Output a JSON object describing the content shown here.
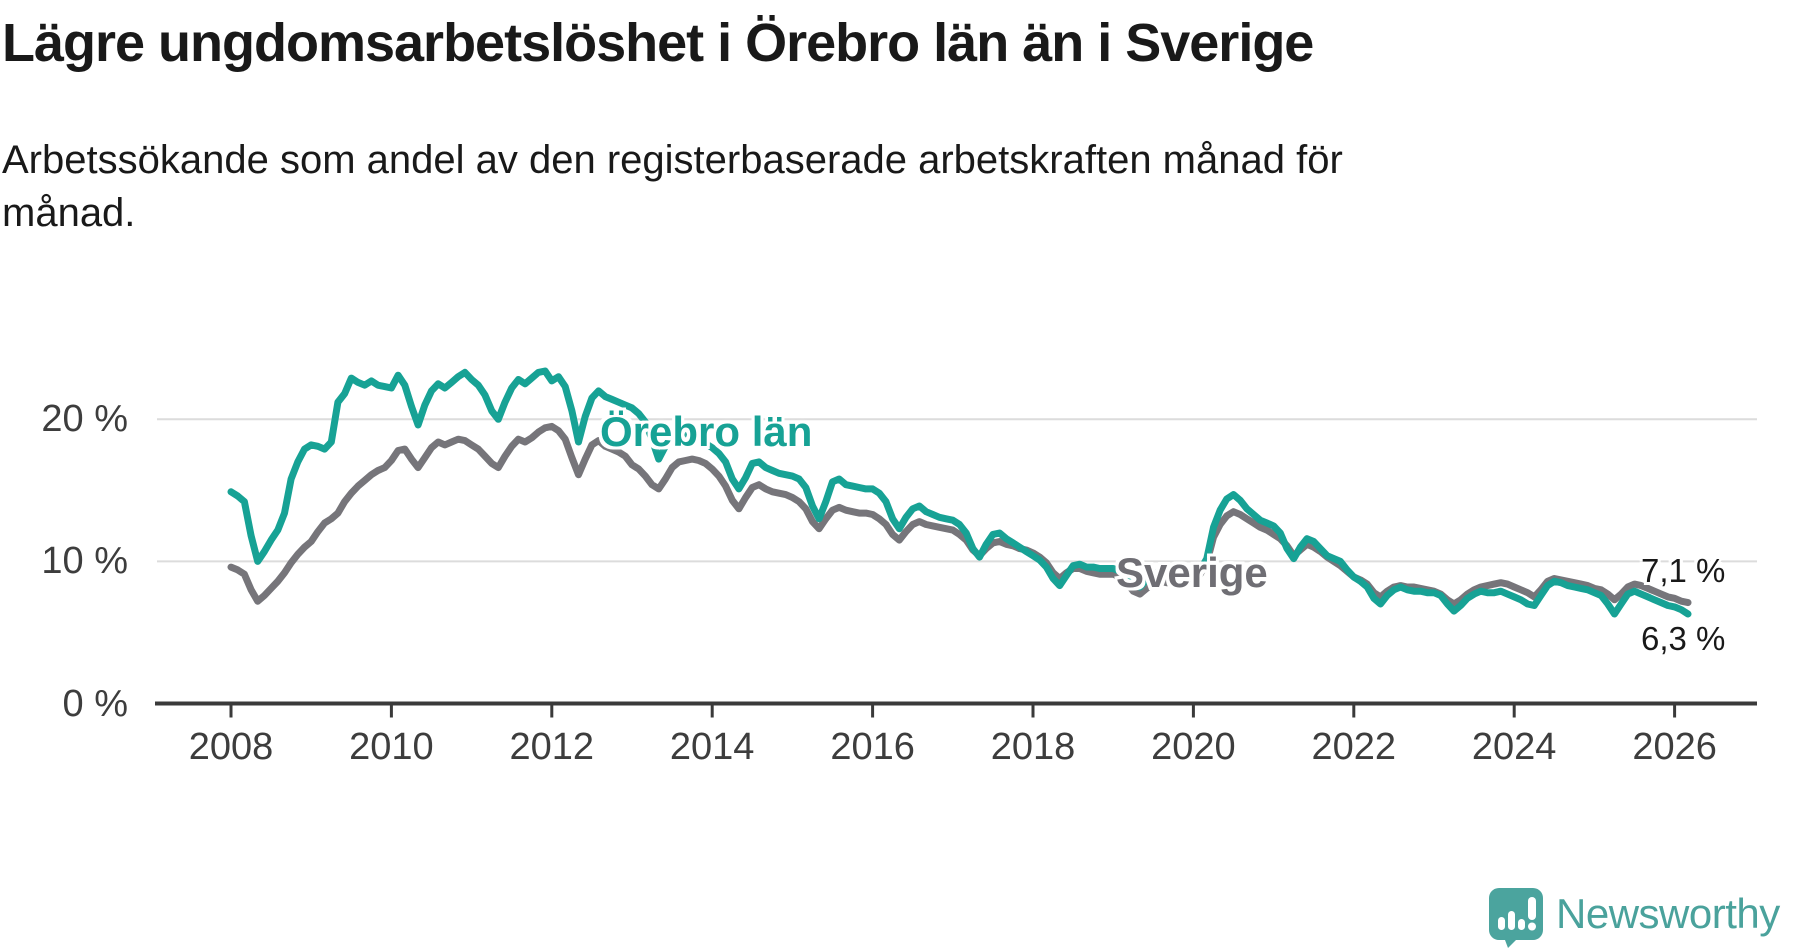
{
  "header": {
    "title": "Lägre ungdomsarbetslöshet i Örebro län än i Sverige"
  },
  "subtitle": {
    "lines": [
      "Arbetssökande som andel av den registerbaserade arbetskraften månad för",
      "månad."
    ]
  },
  "logo": {
    "text": "Newsworthy",
    "icon": "newsworthy-speech-bubble-chart-icon",
    "color": "#4aa29c",
    "icon_color": "#4ba49e"
  },
  "colors": {
    "orebro_line": "#17a295",
    "sverige_line": "#76757a",
    "gridline": "#dcdcdc",
    "axis": "#3a3a3a",
    "text": "#191919",
    "tick_text": "#3d3d3d"
  },
  "chart_data": {
    "type": "line",
    "title": "Lägre ungdomsarbetslöshet i Örebro län än i Sverige",
    "xlabel": "",
    "ylabel": "",
    "x_start_year": 2008,
    "x_step_months": 1,
    "xlim": [
      2007.05,
      2027.05
    ],
    "ylim": [
      0,
      25.5
    ],
    "grid": "horizontal",
    "legend_position": "inline-labels",
    "yticks": [
      {
        "label": "0 %",
        "value": 0
      },
      {
        "label": "10 %",
        "value": 10
      },
      {
        "label": "20 %",
        "value": 20
      }
    ],
    "xticks": [
      {
        "label": "2008",
        "year": 2008
      },
      {
        "label": "2010",
        "year": 2010
      },
      {
        "label": "2012",
        "year": 2012
      },
      {
        "label": "2014",
        "year": 2014
      },
      {
        "label": "2016",
        "year": 2016
      },
      {
        "label": "2018",
        "year": 2018
      },
      {
        "label": "2020",
        "year": 2020
      },
      {
        "label": "2022",
        "year": 2022
      },
      {
        "label": "2024",
        "year": 2024
      },
      {
        "label": "2026",
        "year": 2026
      }
    ],
    "series": [
      {
        "name": "Sverige",
        "color": "#76757a",
        "end_value_label": "7,1 %",
        "values": [
          9.6,
          9.4,
          9.1,
          8.0,
          7.2,
          7.6,
          8.1,
          8.6,
          9.2,
          9.9,
          10.5,
          11.0,
          11.4,
          12.1,
          12.7,
          13.0,
          13.4,
          14.2,
          14.8,
          15.3,
          15.7,
          16.1,
          16.4,
          16.6,
          17.1,
          17.8,
          17.9,
          17.2,
          16.6,
          17.3,
          18.0,
          18.4,
          18.2,
          18.4,
          18.6,
          18.5,
          18.2,
          17.9,
          17.4,
          16.9,
          16.6,
          17.4,
          18.1,
          18.6,
          18.4,
          18.7,
          19.1,
          19.4,
          19.5,
          19.2,
          18.6,
          17.3,
          16.1,
          17.2,
          18.2,
          18.5,
          18.1,
          17.9,
          17.7,
          17.4,
          16.8,
          16.5,
          16.0,
          15.4,
          15.1,
          15.8,
          16.6,
          17.0,
          17.1,
          17.2,
          17.1,
          16.9,
          16.5,
          16.0,
          15.3,
          14.3,
          13.7,
          14.5,
          15.2,
          15.4,
          15.1,
          14.9,
          14.8,
          14.7,
          14.5,
          14.2,
          13.7,
          12.8,
          12.3,
          13.0,
          13.6,
          13.8,
          13.6,
          13.5,
          13.4,
          13.4,
          13.3,
          13.0,
          12.6,
          11.9,
          11.5,
          12.1,
          12.6,
          12.8,
          12.6,
          12.5,
          12.4,
          12.3,
          12.2,
          11.9,
          11.5,
          10.8,
          10.4,
          10.9,
          11.3,
          11.4,
          11.2,
          11.1,
          10.9,
          10.8,
          10.6,
          10.3,
          9.9,
          9.2,
          8.8,
          9.2,
          9.5,
          9.5,
          9.3,
          9.2,
          9.1,
          9.1,
          9.1,
          8.9,
          8.5,
          7.9,
          7.7,
          8.1,
          8.5,
          8.6,
          8.5,
          8.5,
          8.6,
          8.7,
          8.9,
          9.1,
          9.9,
          11.7,
          12.6,
          13.2,
          13.5,
          13.3,
          13.0,
          12.7,
          12.4,
          12.2,
          11.9,
          11.6,
          11.1,
          10.4,
          10.8,
          11.2,
          11.0,
          10.7,
          10.3,
          10.0,
          9.7,
          9.3,
          8.9,
          8.7,
          8.4,
          7.8,
          7.5,
          7.9,
          8.2,
          8.3,
          8.2,
          8.2,
          8.1,
          8.0,
          7.9,
          7.7,
          7.3,
          7.0,
          7.3,
          7.7,
          8.0,
          8.2,
          8.3,
          8.4,
          8.5,
          8.4,
          8.2,
          8.0,
          7.8,
          7.5,
          8.0,
          8.6,
          8.8,
          8.7,
          8.6,
          8.5,
          8.4,
          8.3,
          8.1,
          8.0,
          7.7,
          7.3,
          7.7,
          8.2,
          8.4,
          8.3,
          8.1,
          7.9,
          7.7,
          7.5,
          7.4,
          7.2,
          7.1
        ]
      },
      {
        "name": "Örebro län",
        "color": "#17a295",
        "end_value_label": "6,3 %",
        "values": [
          14.9,
          14.6,
          14.2,
          11.8,
          10.0,
          10.7,
          11.5,
          12.2,
          13.4,
          15.8,
          17.0,
          17.9,
          18.2,
          18.1,
          17.9,
          18.4,
          21.2,
          21.8,
          22.9,
          22.6,
          22.4,
          22.7,
          22.4,
          22.3,
          22.2,
          23.1,
          22.4,
          20.9,
          19.6,
          21.0,
          22.0,
          22.5,
          22.2,
          22.6,
          23.0,
          23.3,
          22.8,
          22.4,
          21.7,
          20.6,
          20.0,
          21.2,
          22.2,
          22.8,
          22.5,
          22.9,
          23.3,
          23.4,
          22.7,
          23.0,
          22.3,
          20.6,
          18.4,
          20.2,
          21.5,
          22.0,
          21.6,
          21.4,
          21.2,
          21.0,
          20.8,
          20.4,
          19.8,
          18.6,
          17.2,
          18.1,
          19.2,
          19.5,
          19.0,
          18.8,
          18.5,
          18.3,
          18.0,
          17.6,
          17.0,
          15.8,
          15.1,
          15.9,
          16.9,
          17.0,
          16.6,
          16.4,
          16.2,
          16.1,
          16.0,
          15.8,
          15.2,
          13.9,
          13.0,
          14.2,
          15.6,
          15.8,
          15.4,
          15.3,
          15.2,
          15.1,
          15.1,
          14.8,
          14.2,
          13.0,
          12.3,
          13.1,
          13.7,
          13.9,
          13.5,
          13.3,
          13.1,
          13.0,
          12.9,
          12.6,
          12.0,
          10.9,
          10.3,
          11.2,
          11.9,
          12.0,
          11.6,
          11.3,
          11.0,
          10.7,
          10.4,
          10.1,
          9.6,
          8.8,
          8.3,
          9.0,
          9.7,
          9.8,
          9.6,
          9.6,
          9.5,
          9.5,
          9.5,
          9.3,
          8.9,
          8.4,
          8.2,
          8.7,
          9.2,
          9.2,
          9.0,
          8.9,
          8.9,
          9.0,
          9.2,
          9.4,
          10.2,
          12.4,
          13.6,
          14.4,
          14.7,
          14.3,
          13.7,
          13.3,
          12.9,
          12.7,
          12.5,
          12.0,
          10.9,
          10.2,
          11.0,
          11.6,
          11.4,
          10.9,
          10.4,
          10.2,
          10.0,
          9.4,
          8.9,
          8.6,
          8.2,
          7.4,
          7.0,
          7.6,
          8.0,
          8.2,
          8.0,
          7.9,
          7.9,
          7.8,
          7.8,
          7.6,
          7.0,
          6.5,
          6.9,
          7.4,
          7.7,
          7.9,
          7.8,
          7.8,
          7.9,
          7.7,
          7.5,
          7.3,
          7.0,
          6.9,
          7.6,
          8.3,
          8.6,
          8.5,
          8.3,
          8.2,
          8.1,
          8.0,
          7.8,
          7.6,
          7.0,
          6.3,
          7.0,
          7.7,
          7.9,
          7.7,
          7.5,
          7.3,
          7.1,
          6.9,
          6.8,
          6.6,
          6.3
        ]
      }
    ],
    "annotations": {
      "orebro_label": "Örebro län",
      "sverige_label": "Sverige",
      "end_label_sverige": "7,1 %",
      "end_label_orebro": "6,3 %"
    }
  }
}
